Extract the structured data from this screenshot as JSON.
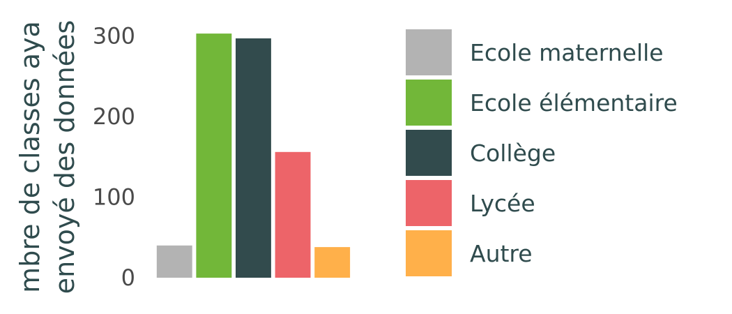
{
  "chart_data": {
    "type": "bar",
    "categories": [
      "Ecole maternelle",
      "Ecole élémentaire",
      "Collège",
      "Lycée",
      "Autre"
    ],
    "values": [
      40,
      303,
      297,
      156,
      38
    ],
    "colors": [
      "#b3b3b3",
      "#72b739",
      "#324b4d",
      "#ed6469",
      "#ffb04a"
    ],
    "ylabel_lines": [
      "mbre de classes aya",
      "envoyé des données"
    ],
    "yticks": [
      0,
      100,
      200,
      300
    ],
    "ylim": [
      0,
      310
    ],
    "grid": false,
    "legend_position": "right",
    "legend_entries": [
      "Ecole maternelle",
      "Ecole élémentaire",
      "Collège",
      "Lycée",
      "Autre"
    ]
  }
}
